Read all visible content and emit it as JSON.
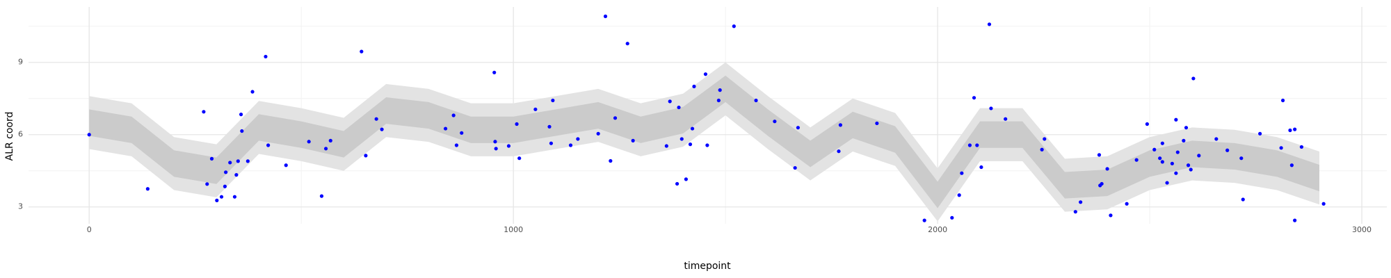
{
  "chart_data": {
    "type": "scatter",
    "x_label": "timepoint",
    "y_label": "ALR coord",
    "xlim": [
      -143,
      3059
    ],
    "ylim": [
      2.3,
      11.3
    ],
    "xticks": [
      0,
      1000,
      2000,
      3000
    ],
    "yticks": [
      3,
      6,
      9
    ],
    "x_minor": [
      500,
      1500,
      2500
    ],
    "y_minor": [
      4.5,
      7.5,
      10.5
    ],
    "grid": true,
    "color": "#0000ff",
    "ribbons": [
      {
        "color": "#e3e3e3",
        "x": [
          0,
          100,
          200,
          300,
          400,
          500,
          600,
          700,
          800,
          900,
          1000,
          1100,
          1200,
          1300,
          1400,
          1500,
          1600,
          1700,
          1800,
          1900,
          2000,
          2100,
          2200,
          2300,
          2400,
          2500,
          2600,
          2700,
          2800,
          2900
        ],
        "lower": [
          5.4,
          5.1,
          3.7,
          3.4,
          5.2,
          4.9,
          4.5,
          5.9,
          5.7,
          5.1,
          5.1,
          5.4,
          5.7,
          5.1,
          5.5,
          6.8,
          5.4,
          4.1,
          5.3,
          4.7,
          2.4,
          4.9,
          4.9,
          2.8,
          2.9,
          3.7,
          4.1,
          4.0,
          3.7,
          3.1
        ],
        "upper": [
          7.6,
          7.3,
          5.9,
          5.6,
          7.4,
          7.1,
          6.7,
          8.1,
          7.9,
          7.3,
          7.3,
          7.6,
          7.9,
          7.3,
          7.7,
          9.0,
          7.6,
          6.3,
          7.5,
          6.9,
          4.6,
          7.1,
          7.1,
          5.0,
          5.1,
          5.9,
          6.3,
          6.2,
          5.9,
          5.3
        ]
      },
      {
        "color": "#cbcbcb",
        "x": [
          0,
          100,
          200,
          300,
          400,
          500,
          600,
          700,
          800,
          900,
          1000,
          1100,
          1200,
          1300,
          1400,
          1500,
          1600,
          1700,
          1800,
          1900,
          2000,
          2100,
          2200,
          2300,
          2400,
          2500,
          2600,
          2700,
          2800,
          2900
        ],
        "lower": [
          5.95,
          5.65,
          4.25,
          3.95,
          5.75,
          5.45,
          5.05,
          6.45,
          6.25,
          5.65,
          5.65,
          5.95,
          6.25,
          5.65,
          6.05,
          7.35,
          5.95,
          4.65,
          5.85,
          5.25,
          2.95,
          5.45,
          5.45,
          3.35,
          3.45,
          4.25,
          4.65,
          4.55,
          4.25,
          3.65
        ],
        "upper": [
          7.05,
          6.75,
          5.35,
          5.05,
          6.85,
          6.55,
          6.15,
          7.55,
          7.35,
          6.75,
          6.75,
          7.05,
          7.35,
          6.75,
          7.15,
          8.45,
          7.05,
          5.75,
          6.95,
          6.35,
          4.05,
          6.55,
          6.55,
          4.45,
          4.55,
          5.35,
          5.75,
          5.65,
          5.35,
          4.75
        ]
      }
    ],
    "x": [
      0,
      138,
      270,
      278,
      289,
      301,
      312,
      322,
      320,
      332,
      343,
      347,
      351,
      358,
      360,
      374,
      385,
      416,
      422,
      464,
      518,
      548,
      558,
      569,
      642,
      652,
      677,
      690,
      840,
      859,
      866,
      878,
      955,
      957,
      959,
      989,
      1008,
      1014,
      1052,
      1085,
      1089,
      1093,
      1135,
      1152,
      1200,
      1217,
      1229,
      1240,
      1269,
      1282,
      1361,
      1369,
      1386,
      1390,
      1397,
      1407,
      1417,
      1422,
      1426,
      1453,
      1457,
      1487,
      1484,
      1520,
      1572,
      1616,
      1664,
      1671,
      1767,
      1771,
      1857,
      1969,
      2034,
      2051,
      2057,
      2076,
      2086,
      2093,
      2103,
      2122,
      2126,
      2160,
      2246,
      2252,
      2325,
      2337,
      2381,
      2383,
      2387,
      2400,
      2408,
      2446,
      2469,
      2494,
      2511,
      2524,
      2530,
      2530,
      2541,
      2553,
      2562,
      2566,
      2562,
      2580,
      2586,
      2591,
      2597,
      2603,
      2616,
      2657,
      2683,
      2716,
      2720,
      2760,
      2810,
      2814,
      2831,
      2835,
      2842,
      2842,
      2858,
      2910
    ],
    "y": [
      6.0,
      3.75,
      6.95,
      3.95,
      5.0,
      3.27,
      3.42,
      4.44,
      3.85,
      4.84,
      3.42,
      4.33,
      4.9,
      6.84,
      6.15,
      4.9,
      7.78,
      9.24,
      5.56,
      4.73,
      5.71,
      3.45,
      5.42,
      5.75,
      9.45,
      5.13,
      6.65,
      6.22,
      6.25,
      6.8,
      5.56,
      6.07,
      8.58,
      5.71,
      5.42,
      5.53,
      6.44,
      5.02,
      7.05,
      6.33,
      5.64,
      7.42,
      5.56,
      5.82,
      6.04,
      10.91,
      4.91,
      6.69,
      9.78,
      5.75,
      5.53,
      7.38,
      3.96,
      7.13,
      5.82,
      4.15,
      5.6,
      6.25,
      8.0,
      8.51,
      5.56,
      7.85,
      7.42,
      10.5,
      7.42,
      6.55,
      4.62,
      6.29,
      5.31,
      6.4,
      6.47,
      2.44,
      2.55,
      3.49,
      4.4,
      5.56,
      7.53,
      5.56,
      4.65,
      10.58,
      7.09,
      6.65,
      5.38,
      5.82,
      2.8,
      3.2,
      5.16,
      3.89,
      3.96,
      4.58,
      2.65,
      3.13,
      4.95,
      6.44,
      5.38,
      5.02,
      4.87,
      5.64,
      4.0,
      4.8,
      6.62,
      5.27,
      4.4,
      5.75,
      6.29,
      4.73,
      4.55,
      8.33,
      5.13,
      5.82,
      5.35,
      5.02,
      3.31,
      6.04,
      5.45,
      7.42,
      6.18,
      4.73,
      6.22,
      2.44,
      5.49,
      3.13
    ]
  }
}
